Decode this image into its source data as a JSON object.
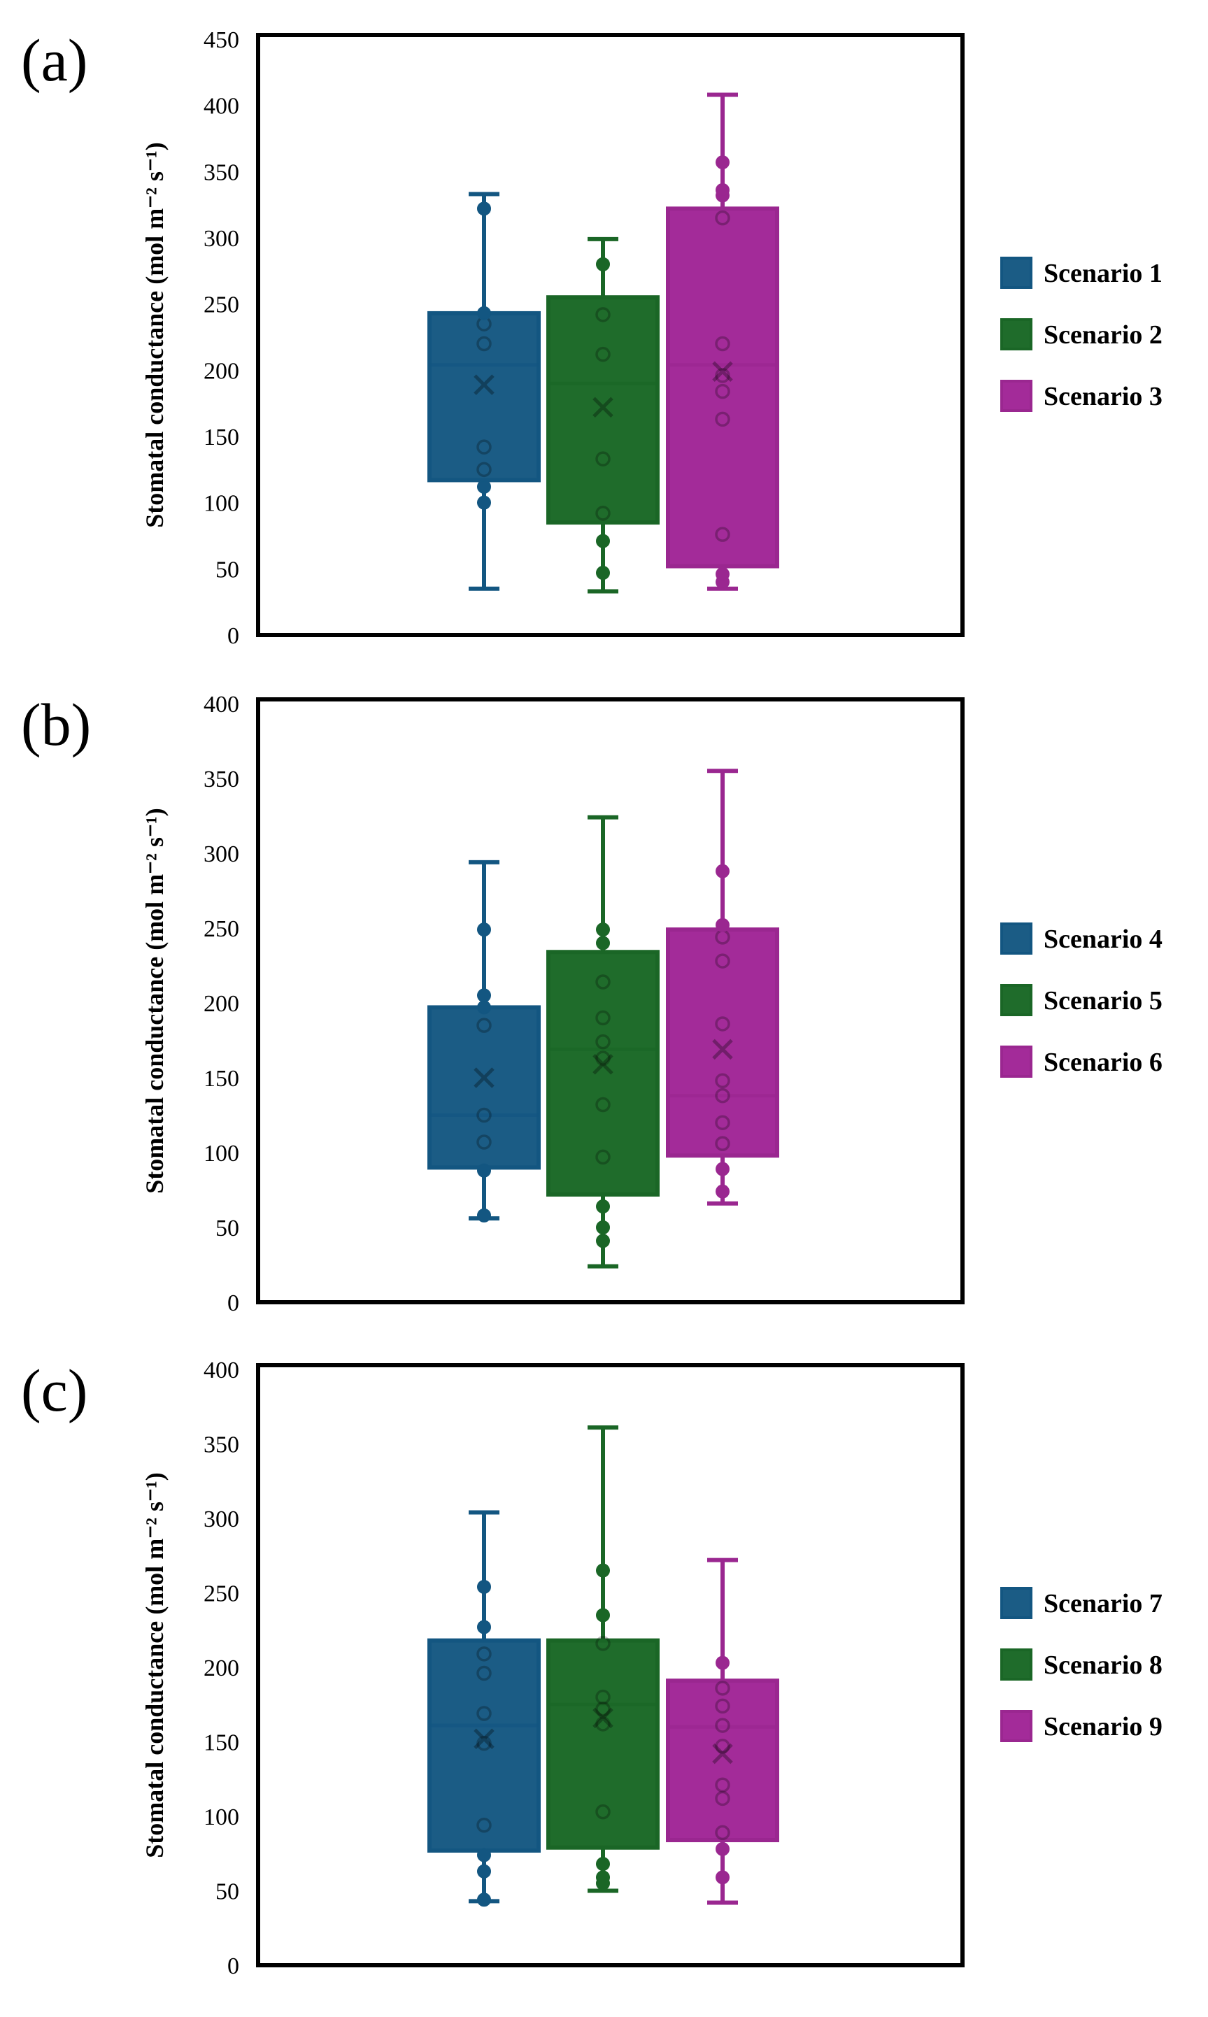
{
  "colors": {
    "series": [
      "#135681",
      "#1a6626",
      "#9a2790"
    ],
    "series_fill": [
      "#1b5c85",
      "#1f6c2b",
      "#a32b99"
    ],
    "frame": "#000000"
  },
  "chart_data": [
    {
      "type": "box",
      "panel_label": "(a)",
      "ylabel": "Stomatal conductance (mol m⁻² s⁻¹)",
      "ylim": [
        0,
        450
      ],
      "yticks": [
        0,
        50,
        100,
        150,
        200,
        250,
        300,
        350,
        400,
        450
      ],
      "legend_position": "right",
      "series": [
        {
          "name": "Scenario 1",
          "min": 35,
          "q1": 117,
          "median": 204,
          "q3": 243,
          "max": 333,
          "mean": 189,
          "points": [
            100,
            112,
            125,
            142,
            220,
            235,
            243
          ],
          "outliers": [
            322
          ]
        },
        {
          "name": "Scenario 2",
          "min": 33,
          "q1": 85,
          "median": 190,
          "q3": 255,
          "max": 299,
          "mean": 172,
          "points": [
            47,
            71,
            92,
            133,
            212,
            242,
            280
          ],
          "outliers": []
        },
        {
          "name": "Scenario 3",
          "min": 35,
          "q1": 52,
          "median": 204,
          "q3": 322,
          "max": 408,
          "mean": 199,
          "points": [
            40,
            46,
            76,
            163,
            184,
            196,
            220,
            315,
            332,
            336,
            357
          ],
          "outliers": []
        }
      ]
    },
    {
      "type": "box",
      "panel_label": "(b)",
      "ylabel": "Stomatal conductance (mol m⁻² s⁻¹)",
      "ylim": [
        0,
        400
      ],
      "yticks": [
        0,
        50,
        100,
        150,
        200,
        250,
        300,
        350,
        400
      ],
      "legend_position": "right",
      "series": [
        {
          "name": "Scenario 4",
          "min": 56,
          "q1": 90,
          "median": 125,
          "q3": 197,
          "max": 294,
          "mean": 150,
          "points": [
            58,
            88,
            107,
            125,
            185,
            197,
            205,
            249
          ],
          "outliers": []
        },
        {
          "name": "Scenario 5",
          "min": 24,
          "q1": 72,
          "median": 169,
          "q3": 234,
          "max": 324,
          "mean": 159,
          "points": [
            41,
            50,
            64,
            97,
            132,
            163,
            174,
            190,
            214,
            240,
            249
          ],
          "outliers": []
        },
        {
          "name": "Scenario 6",
          "min": 66,
          "q1": 98,
          "median": 138,
          "q3": 249,
          "max": 355,
          "mean": 169,
          "points": [
            74,
            89,
            106,
            120,
            138,
            148,
            186,
            228,
            244,
            252,
            288
          ],
          "outliers": []
        }
      ]
    },
    {
      "type": "box",
      "panel_label": "(c)",
      "ylabel": "Stomatal conductance (mol m⁻² s⁻¹)",
      "ylim": [
        0,
        400
      ],
      "yticks": [
        0,
        50,
        100,
        150,
        200,
        250,
        300,
        350,
        400
      ],
      "legend_position": "right",
      "series": [
        {
          "name": "Scenario 7",
          "min": 43,
          "q1": 77,
          "median": 161,
          "q3": 218,
          "max": 304,
          "mean": 152,
          "points": [
            44,
            63,
            74,
            94,
            149,
            169,
            196,
            209,
            227,
            254
          ],
          "outliers": []
        },
        {
          "name": "Scenario 8",
          "min": 50,
          "q1": 79,
          "median": 175,
          "q3": 218,
          "max": 361,
          "mean": 166,
          "points": [
            55,
            59,
            68,
            103,
            162,
            172,
            180,
            216,
            235,
            265
          ],
          "outliers": []
        },
        {
          "name": "Scenario 9",
          "min": 42,
          "q1": 84,
          "median": 160,
          "q3": 191,
          "max": 272,
          "mean": 142,
          "points": [
            59,
            78,
            89,
            112,
            121,
            147,
            161,
            174,
            186,
            203
          ],
          "outliers": []
        }
      ]
    }
  ]
}
